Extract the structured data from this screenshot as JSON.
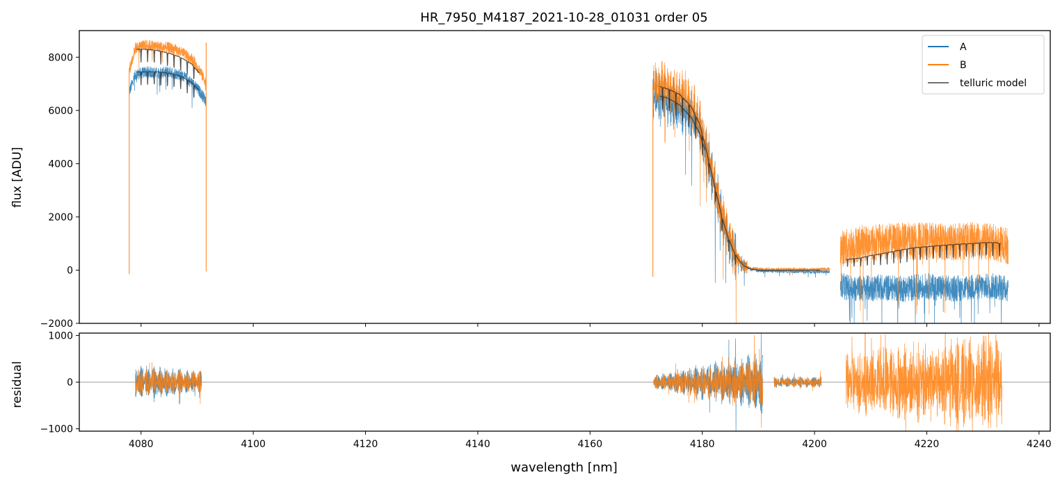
{
  "title": "HR_7950_M4187_2021-10-28_01031  order 05",
  "colors": {
    "A": "#1f77b4",
    "B": "#ff7f0e",
    "model": "#333333",
    "zero_line": "#808080"
  },
  "chart_data": [
    {
      "type": "line",
      "panel": "top",
      "title": "HR_7950_M4187_2021-10-28_01031  order 05",
      "xlabel": "",
      "ylabel": "flux [ADU]",
      "xlim": [
        4069,
        4242
      ],
      "ylim": [
        -2000,
        9000
      ],
      "yticks": [
        -2000,
        0,
        2000,
        4000,
        6000,
        8000
      ],
      "ytick_labels": [
        "−2000",
        "0",
        "2000",
        "4000",
        "6000",
        "8000"
      ],
      "xticks": [
        4080,
        4100,
        4120,
        4140,
        4160,
        4180,
        4200,
        4220,
        4240
      ],
      "grid": false,
      "legend": {
        "placement": "top-right",
        "entries": [
          "A",
          "B",
          "telluric model"
        ]
      },
      "series": [
        {
          "name": "A",
          "segments": [
            {
              "x": [
                4077.9,
                4079,
                4081,
                4083,
                4085,
                4087,
                4089,
                4090.5,
                4091.6
              ],
              "y": [
                6700,
                7350,
                7450,
                7400,
                7450,
                7350,
                7050,
                6700,
                6350
              ]
            },
            {
              "x": [
                4171.2,
                4173,
                4175,
                4177,
                4178.5,
                4179.5,
                4180.5,
                4181.5,
                4182.5,
                4183.5,
                4184.5,
                4185.5,
                4186.5,
                4187.5,
                4188.5,
                4190,
                4195,
                4200,
                4202.7
              ],
              "y": [
                6600,
                6450,
                6250,
                6000,
                5700,
                5300,
                4600,
                3800,
                2900,
                2000,
                1300,
                700,
                350,
                120,
                50,
                -20,
                -50,
                -60,
                -50
              ]
            },
            {
              "x": [
                4204.6,
                4208,
                4212,
                4216,
                4220,
                4224,
                4228,
                4232,
                4234.5
              ],
              "y": [
                -600,
                -700,
                -650,
                -700,
                -600,
                -700,
                -650,
                -600,
                -700
              ]
            }
          ]
        },
        {
          "name": "B",
          "segments": [
            {
              "x": [
                4077.9,
                4079,
                4081,
                4083,
                4085,
                4087,
                4089,
                4090.5,
                4091.6
              ],
              "y": [
                7500,
                8350,
                8450,
                8400,
                8350,
                8200,
                7950,
                7500,
                7000
              ]
            },
            {
              "x": [
                4171.2,
                4173,
                4175,
                4177,
                4178.5,
                4179.5,
                4180.5,
                4181.5,
                4182.5,
                4183.5,
                4184.5,
                4185.5,
                4186.5,
                4187.5,
                4188.5,
                4190,
                4195,
                4200,
                4202.7
              ],
              "y": [
                6950,
                6900,
                6750,
                6500,
                6100,
                5550,
                4800,
                3900,
                3000,
                2100,
                1350,
                750,
                380,
                150,
                80,
                40,
                30,
                30,
                40
              ]
            },
            {
              "x": [
                4204.6,
                4208,
                4212,
                4216,
                4220,
                4224,
                4228,
                4232,
                4234.5
              ],
              "y": [
                800,
                1000,
                1050,
                1100,
                1100,
                1050,
                1100,
                1050,
                900
              ]
            }
          ]
        },
        {
          "name": "telluric model",
          "segments": [
            {
              "x": [
                4079.2,
                4081,
                4083,
                4085,
                4087,
                4089,
                4090.4
              ],
              "y": [
                8300,
                8300,
                8250,
                8150,
                8000,
                7750,
                7400
              ]
            },
            {
              "x": [
                4079.2,
                4081,
                4083,
                4085,
                4087,
                4089,
                4090.4
              ],
              "y": [
                7450,
                7450,
                7450,
                7400,
                7300,
                7050,
                6750
              ]
            },
            {
              "x": [
                4172.4,
                4174,
                4176,
                4178,
                4179.5,
                4180.5,
                4181.5,
                4182.5,
                4183.5,
                4184.5,
                4185.5,
                4186.5,
                4187.5,
                4188.5,
                4190,
                4195,
                4201
              ],
              "y": [
                6900,
                6800,
                6600,
                6150,
                5500,
                4700,
                3800,
                2900,
                2000,
                1300,
                750,
                380,
                150,
                50,
                0,
                0,
                0
              ]
            },
            {
              "x": [
                4172.4,
                4174,
                4176,
                4178,
                4179.5,
                4180.5
              ],
              "y": [
                6550,
                6450,
                6200,
                5750,
                5150,
                4500
              ]
            },
            {
              "x": [
                4205.6,
                4208,
                4210,
                4212,
                4214,
                4216,
                4218,
                4220,
                4222,
                4224,
                4226,
                4228,
                4230,
                4232,
                4233.2
              ],
              "y": [
                400,
                450,
                550,
                620,
                700,
                780,
                850,
                880,
                920,
                950,
                980,
                1000,
                1030,
                1040,
                1000
              ]
            }
          ]
        }
      ]
    },
    {
      "type": "line",
      "panel": "bottom",
      "xlabel": "wavelength [nm]",
      "ylabel": "residual",
      "xlim": [
        4069,
        4242
      ],
      "ylim": [
        -1050,
        1050
      ],
      "yticks": [
        -1000,
        0,
        1000
      ],
      "ytick_labels": [
        "−1000",
        "0",
        "1000"
      ],
      "xticks": [
        4080,
        4100,
        4120,
        4140,
        4160,
        4180,
        4200,
        4220,
        4240
      ],
      "xtick_labels": [
        "4080",
        "4100",
        "4120",
        "4140",
        "4160",
        "4180",
        "4200",
        "4220",
        "4240"
      ],
      "grid": false,
      "reference_line_y": 0,
      "series": [
        {
          "name": "A",
          "segments": [
            {
              "x": [
                4079,
                4090.8
              ],
              "amplitude": [
                400,
                250
              ]
            },
            {
              "x": [
                4171.3,
                4190.8
              ],
              "amplitude": [
                150,
                700
              ]
            },
            {
              "x": [
                4192.8,
                4201.2
              ],
              "amplitude": [
                120,
                120
              ]
            }
          ]
        },
        {
          "name": "B",
          "segments": [
            {
              "x": [
                4079,
                4090.8
              ],
              "amplitude": [
                350,
                250
              ]
            },
            {
              "x": [
                4171.3,
                4190.8
              ],
              "amplitude": [
                150,
                600
              ]
            },
            {
              "x": [
                4192.8,
                4201.2
              ],
              "amplitude": [
                120,
                120
              ]
            },
            {
              "x": [
                4205.6,
                4233.4
              ],
              "amplitude": [
                700,
                1100
              ]
            }
          ]
        }
      ]
    }
  ]
}
